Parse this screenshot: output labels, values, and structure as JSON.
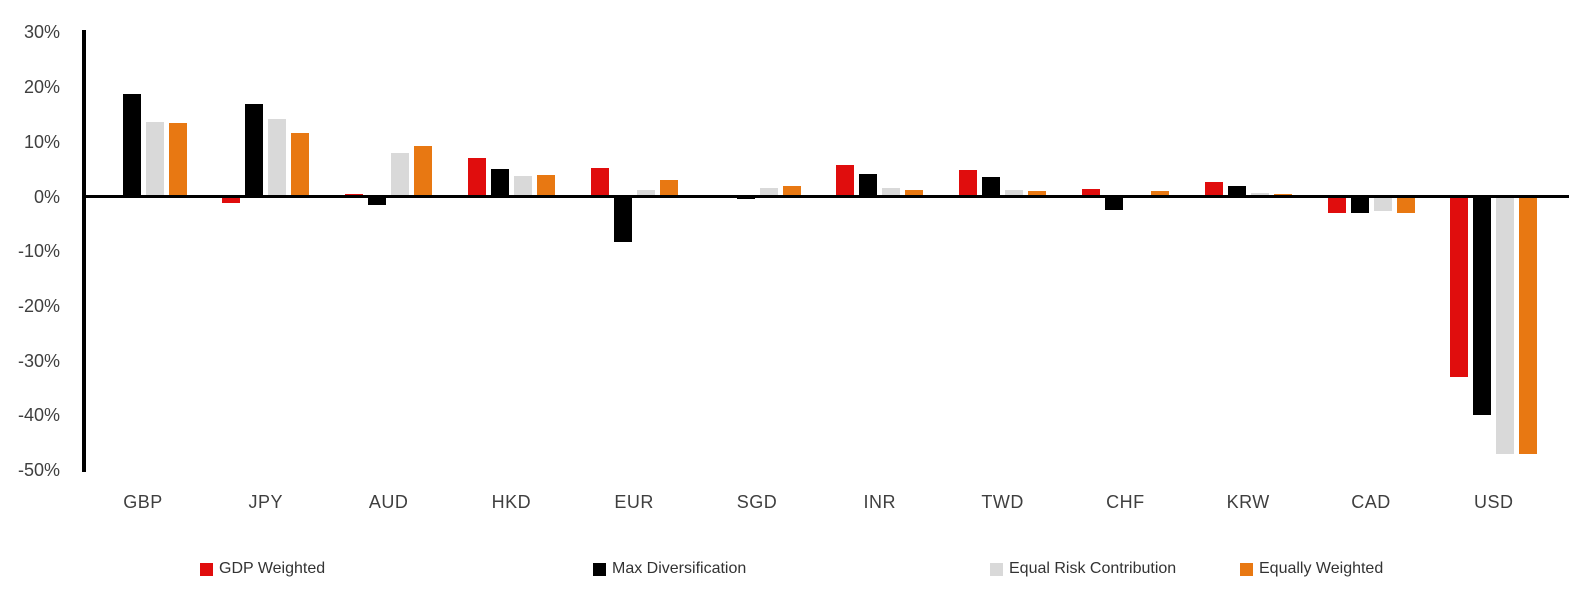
{
  "chart_data": {
    "type": "bar",
    "categories": [
      "GBP",
      "JPY",
      "AUD",
      "HKD",
      "EUR",
      "SGD",
      "INR",
      "TWD",
      "CHF",
      "KRW",
      "CAD",
      "USD"
    ],
    "series": [
      {
        "name": "GDP Weighted",
        "color": "#e00d0d",
        "values": [
          0.2,
          -1.2,
          0.4,
          7.0,
          5.3,
          -0.1,
          5.7,
          4.9,
          1.4,
          2.7,
          -3.1,
          -33.0
        ]
      },
      {
        "name": "Max Diversification",
        "color": "#000000",
        "values": [
          18.8,
          17.0,
          -1.5,
          5.0,
          -8.3,
          -0.5,
          4.2,
          3.6,
          -2.5,
          2.0,
          -3.0,
          -40.0
        ]
      },
      {
        "name": "Equal Risk Contribution",
        "color": "#d9d9d9",
        "values": [
          13.7,
          14.1,
          7.9,
          3.8,
          1.1,
          1.5,
          1.5,
          1.2,
          -0.1,
          0.6,
          -2.7,
          -47.0
        ]
      },
      {
        "name": "Equally Weighted",
        "color": "#e87812",
        "values": [
          13.4,
          11.7,
          9.2,
          4.0,
          3.0,
          1.9,
          1.1,
          1.0,
          1.0,
          0.5,
          -3.0,
          -47.0
        ]
      }
    ],
    "ylim": [
      -50,
      30
    ],
    "yticks": [
      30,
      20,
      10,
      0,
      -10,
      -20,
      -30,
      -40,
      -50
    ],
    "ytick_suffix": "%",
    "xlabel": "",
    "ylabel": "",
    "grid": false,
    "legend_position": "bottom",
    "axis_color": "#000000",
    "tick_label_color": "#3f3f3f",
    "legend_label_color": "#333333"
  }
}
